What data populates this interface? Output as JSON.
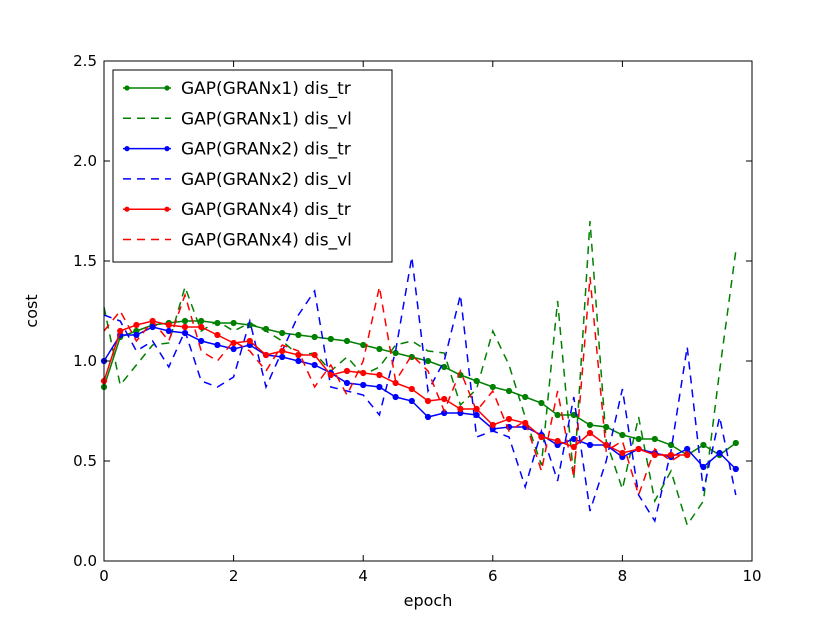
{
  "chart_data": {
    "type": "line",
    "title": "",
    "xlabel": "epoch",
    "ylabel": "cost",
    "xlim": [
      0,
      10
    ],
    "ylim": [
      0,
      2.5
    ],
    "xticks": [
      "0",
      "2",
      "4",
      "6",
      "8",
      "10"
    ],
    "yticks": [
      "0.0",
      "0.5",
      "1.0",
      "1.5",
      "2.0",
      "2.5"
    ],
    "grid": false,
    "legend_position": "top-left",
    "series": [
      {
        "name": "GAP(GRANx1) dis_tr",
        "color": "#008000",
        "style": "solid",
        "markers": true,
        "x": [
          0,
          0.25,
          0.5,
          0.75,
          1,
          1.25,
          1.5,
          1.75,
          2,
          2.25,
          2.5,
          2.75,
          3,
          3.25,
          3.5,
          3.75,
          4,
          4.25,
          4.5,
          4.75,
          5,
          5.25,
          5.5,
          5.75,
          6,
          6.25,
          6.5,
          6.75,
          7,
          7.25,
          7.5,
          7.75,
          8,
          8.25,
          8.5,
          8.75,
          9,
          9.25,
          9.5,
          9.75
        ],
        "y": [
          0.87,
          1.12,
          1.15,
          1.18,
          1.19,
          1.2,
          1.2,
          1.19,
          1.19,
          1.18,
          1.16,
          1.14,
          1.13,
          1.12,
          1.11,
          1.1,
          1.08,
          1.06,
          1.04,
          1.02,
          1.0,
          0.97,
          0.93,
          0.9,
          0.87,
          0.85,
          0.82,
          0.79,
          0.73,
          0.73,
          0.68,
          0.67,
          0.63,
          0.61,
          0.61,
          0.58,
          0.53,
          0.58,
          0.53,
          0.59
        ]
      },
      {
        "name": "GAP(GRANx1) dis_vl",
        "color": "#008000",
        "style": "dashed",
        "markers": false,
        "x": [
          0,
          0.25,
          0.5,
          0.75,
          1,
          1.25,
          1.5,
          1.75,
          2,
          2.25,
          2.5,
          2.75,
          3,
          3.25,
          3.5,
          3.75,
          4,
          4.25,
          4.5,
          4.75,
          5,
          5.25,
          5.5,
          5.75,
          6,
          6.25,
          6.5,
          6.75,
          7,
          7.25,
          7.5,
          7.75,
          8,
          8.25,
          8.5,
          8.75,
          9,
          9.25,
          9.5,
          9.75
        ],
        "y": [
          1.27,
          0.88,
          0.98,
          1.08,
          1.09,
          1.37,
          1.15,
          1.2,
          1.15,
          1.19,
          1.15,
          1.1,
          1.03,
          1.04,
          0.95,
          1.02,
          0.93,
          0.97,
          1.08,
          1.1,
          1.05,
          1.04,
          0.78,
          0.86,
          1.15,
          0.98,
          0.72,
          0.48,
          1.3,
          0.41,
          1.7,
          0.6,
          0.36,
          0.72,
          0.3,
          0.45,
          0.18,
          0.3,
          0.95,
          1.55
        ]
      },
      {
        "name": "GAP(GRANx2) dis_tr",
        "color": "#0000ff",
        "style": "solid",
        "markers": true,
        "x": [
          0,
          0.25,
          0.5,
          0.75,
          1,
          1.25,
          1.5,
          1.75,
          2,
          2.25,
          2.5,
          2.75,
          3,
          3.25,
          3.5,
          3.75,
          4,
          4.25,
          4.5,
          4.75,
          5,
          5.25,
          5.5,
          5.75,
          6,
          6.25,
          6.5,
          6.75,
          7,
          7.25,
          7.5,
          7.75,
          8,
          8.25,
          8.5,
          8.75,
          9,
          9.25,
          9.5,
          9.75
        ],
        "y": [
          1.0,
          1.13,
          1.13,
          1.17,
          1.15,
          1.14,
          1.1,
          1.08,
          1.06,
          1.08,
          1.03,
          1.02,
          1.0,
          0.98,
          0.94,
          0.89,
          0.88,
          0.87,
          0.82,
          0.8,
          0.72,
          0.74,
          0.74,
          0.73,
          0.66,
          0.67,
          0.67,
          0.63,
          0.58,
          0.61,
          0.58,
          0.58,
          0.52,
          0.56,
          0.54,
          0.52,
          0.56,
          0.47,
          0.54,
          0.46
        ]
      },
      {
        "name": "GAP(GRANx2) dis_vl",
        "color": "#0000ff",
        "style": "dashed",
        "markers": false,
        "x": [
          0,
          0.25,
          0.5,
          0.75,
          1,
          1.25,
          1.5,
          1.75,
          2,
          2.25,
          2.5,
          2.75,
          3,
          3.25,
          3.5,
          3.75,
          4,
          4.25,
          4.5,
          4.75,
          5,
          5.25,
          5.5,
          5.75,
          6,
          6.25,
          6.5,
          6.75,
          7,
          7.25,
          7.5,
          7.75,
          8,
          8.25,
          8.5,
          8.75,
          9,
          9.25,
          9.5,
          9.75
        ],
        "y": [
          1.23,
          1.2,
          1.05,
          1.1,
          0.97,
          1.15,
          0.9,
          0.87,
          0.92,
          1.2,
          0.87,
          1.05,
          1.23,
          1.35,
          0.87,
          0.85,
          0.83,
          0.73,
          1.05,
          1.52,
          0.85,
          1.0,
          1.33,
          0.62,
          0.65,
          0.62,
          0.37,
          0.65,
          0.4,
          0.82,
          0.25,
          0.5,
          0.86,
          0.33,
          0.2,
          0.55,
          1.07,
          0.35,
          0.72,
          0.33
        ]
      },
      {
        "name": "GAP(GRANx4) dis_tr",
        "color": "#ff0000",
        "style": "solid",
        "markers": true,
        "x": [
          0,
          0.25,
          0.5,
          0.75,
          1,
          1.25,
          1.5,
          1.75,
          2,
          2.25,
          2.5,
          2.75,
          3,
          3.25,
          3.5,
          3.75,
          4,
          4.25,
          4.5,
          4.75,
          5,
          5.25,
          5.5,
          5.75,
          6,
          6.25,
          6.5,
          6.75,
          7,
          7.25,
          7.5,
          7.75,
          8,
          8.25,
          8.5,
          8.75,
          9
        ],
        "y": [
          0.9,
          1.15,
          1.18,
          1.2,
          1.18,
          1.17,
          1.17,
          1.13,
          1.09,
          1.1,
          1.03,
          1.05,
          1.03,
          1.03,
          0.93,
          0.95,
          0.94,
          0.93,
          0.89,
          0.86,
          0.8,
          0.81,
          0.76,
          0.76,
          0.68,
          0.71,
          0.69,
          0.62,
          0.6,
          0.57,
          0.64,
          0.58,
          0.54,
          0.56,
          0.53,
          0.53,
          0.53
        ]
      },
      {
        "name": "GAP(GRANx4) dis_vl",
        "color": "#ff0000",
        "style": "dashed",
        "markers": false,
        "x": [
          0,
          0.25,
          0.5,
          0.75,
          1,
          1.25,
          1.5,
          1.75,
          2,
          2.25,
          2.5,
          2.75,
          3,
          3.25,
          3.5,
          3.75,
          4,
          4.25,
          4.5,
          4.75,
          5,
          5.25,
          5.5,
          5.75,
          6,
          6.25,
          6.5,
          6.75,
          7,
          7.25,
          7.5,
          7.75,
          8,
          8.25,
          8.5,
          8.75,
          9
        ],
        "y": [
          1.15,
          1.25,
          1.1,
          1.2,
          1.1,
          1.33,
          1.05,
          1.0,
          1.1,
          1.05,
          0.95,
          1.08,
          1.05,
          0.87,
          0.98,
          0.83,
          1.0,
          1.37,
          0.9,
          1.03,
          0.95,
          0.75,
          0.95,
          0.75,
          0.85,
          0.65,
          0.7,
          0.45,
          0.85,
          0.42,
          1.42,
          0.55,
          0.6,
          0.33,
          0.56,
          0.5,
          0.55
        ]
      }
    ]
  }
}
